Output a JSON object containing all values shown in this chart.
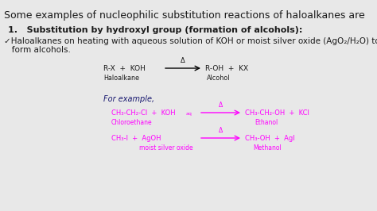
{
  "bg_color": "#e8e8e8",
  "title": "Some examples of nucleophilic substitution reactions of haloalkanes are",
  "title_fontsize": 9.0,
  "title_color": "#1a1a1a",
  "heading": "1.   Substitution by hydroxyl group (formation of alcohols):",
  "heading_fontsize": 8.0,
  "bullet_line1": "✓Haloalkanes on heating with aqueous solution of KOH or moist silver oxide (AgO₂/H₂O) to",
  "bullet_line2": "   form alcohols.",
  "bullet_fontsize": 7.5,
  "general_eq_left": "R-X  +  KOH",
  "general_eq_right": "R-OH  +  KX",
  "general_eq_delta": "Δ",
  "label_haloalkane": "Haloalkane",
  "label_alcohol": "Alcohol",
  "for_example": "For example,",
  "for_example_fontsize": 7.0,
  "eq1_left": "CH₃-CH₂-Cl  +  KOH",
  "eq1_left_sub": "aq",
  "eq1_right": "CH₃-CH₂-OH  +  KCl",
  "eq1_delta": "Δ",
  "eq1_label_left": "Chloroethane",
  "eq1_label_right": "Ethanol",
  "eq2_left": "CH₃-I  +  AgOH",
  "eq2_right": "CH₃-OH  +  AgI",
  "eq2_delta": "Δ",
  "eq2_label_left": "moist silver oxide",
  "eq2_label_right": "Methanol",
  "magenta": "#ff00ff",
  "dark_text": "#1a1a1a",
  "blue_heading": "#191970",
  "eq_fontsize": 6.0,
  "label_fontsize": 5.5,
  "gen_fontsize": 6.5,
  "gen_label_fontsize": 5.8
}
